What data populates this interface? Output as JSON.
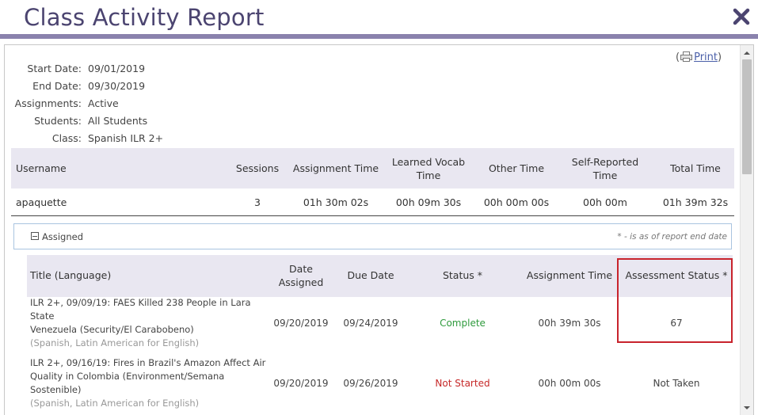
{
  "window": {
    "title": "Class Activity Report"
  },
  "summary": {
    "items": [
      {
        "label": "Start Date:",
        "value": "09/01/2019"
      },
      {
        "label": "End Date:",
        "value": "09/30/2019"
      },
      {
        "label": "Assignments:",
        "value": "Active"
      },
      {
        "label": "Students:",
        "value": "All Students"
      },
      {
        "label": "Class:",
        "value": "Spanish ILR 2+"
      }
    ]
  },
  "print": {
    "open_paren": "(",
    "label": "Print",
    "close_paren": ")"
  },
  "main_table": {
    "headers": {
      "username": "Username",
      "sessions": "Sessions",
      "assignment_time": "Assignment Time",
      "learned_vocab_line1": "Learned Vocab",
      "learned_vocab_line2": "Time",
      "other_time": "Other Time",
      "self_reported_line1": "Self-Reported",
      "self_reported_line2": "Time",
      "total_time": "Total Time"
    },
    "rows": [
      {
        "username": "apaquette",
        "sessions": "3",
        "assignment_time": "01h 30m 02s",
        "learned_vocab": "00h 09m 30s",
        "other_time": "00h 00m 00s",
        "self_reported": "00h 00m",
        "total_time": "01h 39m 32s"
      }
    ]
  },
  "assigned_section": {
    "label": "Assigned",
    "note": "* - is as of report end date",
    "headers": {
      "title": "Title (Language)",
      "date_assigned_line1": "Date",
      "date_assigned_line2": "Assigned",
      "due_date": "Due Date",
      "status": "Status *",
      "assignment_time": "Assignment Time",
      "assessment_status": "Assessment Status *"
    },
    "rows": [
      {
        "title_line1": "ILR 2+, 09/09/19: FAES Killed 238 People in Lara State",
        "title_line2": "Venezuela (Security/El Carabobeno)",
        "title_line3": "",
        "language": "(Spanish, Latin American for English)",
        "date_assigned": "09/20/2019",
        "due_date": "09/24/2019",
        "status": "Complete",
        "assignment_time": "00h 39m 30s",
        "assessment_status": "67"
      },
      {
        "title_line1": "ILR 2+, 09/16/19: Fires in Brazil's Amazon Affect Air",
        "title_line2": "Quality in Colombia (Environment/Semana",
        "title_line3": "Sostenible)",
        "language": "(Spanish, Latin American for English)",
        "date_assigned": "09/20/2019",
        "due_date": "09/26/2019",
        "status": "Not Started",
        "assignment_time": "00h 00m 00s",
        "assessment_status": "Not Taken"
      }
    ]
  },
  "colors": {
    "title": "#4b4470",
    "accent_bar": "#8a82ad",
    "header_bg": "#e9e7f1",
    "complete": "#2e9a3c",
    "not_started": "#c62828",
    "highlight": "#c8232c",
    "link": "#4a5fa8"
  }
}
